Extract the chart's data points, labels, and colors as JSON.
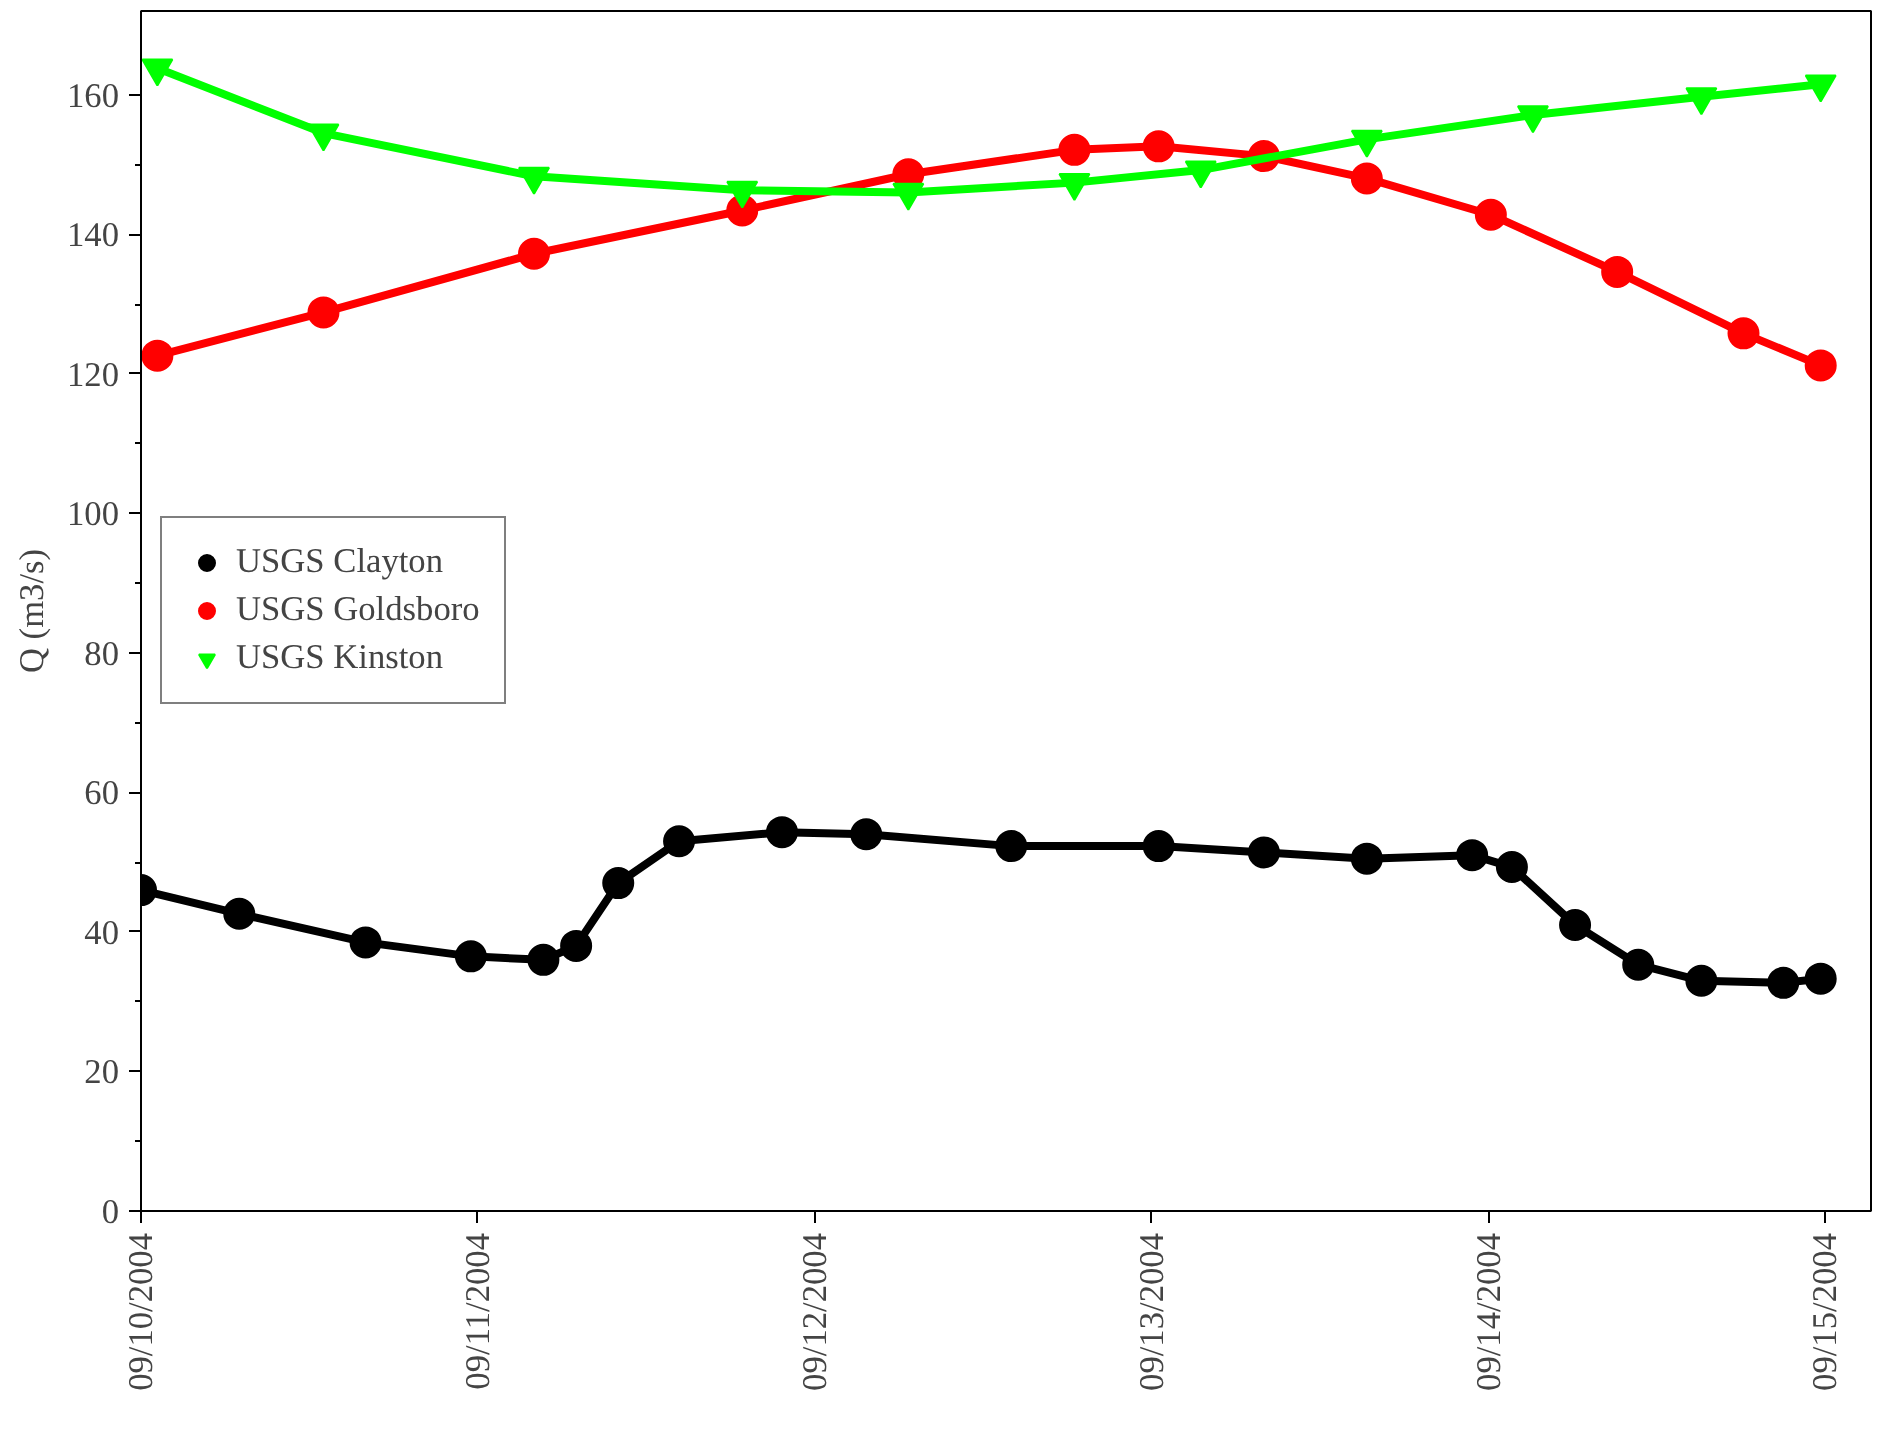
{
  "chart_data": {
    "type": "line",
    "ylabel": "Q (m3/s)",
    "xlim": [
      "2004-09-10T00:00",
      "2004-09-15T03:15"
    ],
    "ylim": [
      0,
      172
    ],
    "xticks": [
      {
        "value": "2004-09-10",
        "label": "09/10/2004"
      },
      {
        "value": "2004-09-11",
        "label": "09/11/2004"
      },
      {
        "value": "2004-09-12",
        "label": "09/12/2004"
      },
      {
        "value": "2004-09-13",
        "label": "09/13/2004"
      },
      {
        "value": "2004-09-14",
        "label": "09/14/2004"
      },
      {
        "value": "2004-09-15",
        "label": "09/15/2004"
      }
    ],
    "yticks": [
      0,
      {
        "value": 10,
        "label": null
      },
      20,
      {
        "value": 30,
        "label": null
      },
      40,
      {
        "value": 50,
        "label": null
      },
      60,
      {
        "value": 70,
        "label": null
      },
      80,
      {
        "value": 90,
        "label": null
      },
      100,
      {
        "value": 110,
        "label": null
      },
      120,
      {
        "value": 130,
        "label": null
      },
      140,
      {
        "value": 150,
        "label": null
      },
      160
    ],
    "grid": false,
    "legend": "left",
    "line_style": "solid",
    "series": [
      {
        "name": "USGS Clayton",
        "color": "#000000",
        "marker": "circle",
        "x": [
          "2004-09-10T00:00",
          "2004-09-10T07:00",
          "2004-09-10T16:00",
          "2004-09-10T23:30",
          "2004-09-11T04:40",
          "2004-09-11T07:00",
          "2004-09-11T10:00",
          "2004-09-11T14:20",
          "2004-09-11T21:40",
          "2004-09-12T03:40",
          "2004-09-12T14:00",
          "2004-09-13T00:30",
          "2004-09-13T08:00",
          "2004-09-13T15:20",
          "2004-09-13T22:50",
          "2004-09-14T01:40",
          "2004-09-14T06:10",
          "2004-09-14T10:40",
          "2004-09-14T15:10",
          "2004-09-14T21:00",
          "2004-09-14T23:40"
        ],
        "values": [
          46,
          42.6,
          38.5,
          36.5,
          36,
          38,
          47,
          53,
          54.3,
          54,
          52.3,
          52.3,
          51.4,
          50.5,
          51,
          49.3,
          41,
          35.3,
          33,
          32.7,
          33.3
        ]
      },
      {
        "name": "USGS Goldsboro",
        "color": "#ff0000",
        "marker": "circle",
        "x": [
          "2004-09-10T01:10",
          "2004-09-10T13:00",
          "2004-09-11T04:00",
          "2004-09-11T18:50",
          "2004-09-12T06:40",
          "2004-09-12T18:30",
          "2004-09-13T00:30",
          "2004-09-13T08:00",
          "2004-09-13T15:20",
          "2004-09-14T00:10",
          "2004-09-14T09:10",
          "2004-09-14T18:10",
          "2004-09-14T23:40"
        ],
        "values": [
          122.6,
          128.8,
          137.2,
          143.4,
          148.6,
          152.1,
          152.6,
          151.2,
          148,
          142.8,
          134.6,
          125.8,
          121.2
        ]
      },
      {
        "name": "USGS Kinston",
        "color": "#00ff00",
        "marker": "triangle",
        "x": [
          "2004-09-10T01:10",
          "2004-09-10T13:00",
          "2004-09-11T04:00",
          "2004-09-11T18:50",
          "2004-09-12T06:40",
          "2004-09-12T18:30",
          "2004-09-13T03:30",
          "2004-09-13T15:20",
          "2004-09-14T03:10",
          "2004-09-14T15:10",
          "2004-09-14T23:40"
        ],
        "values": [
          163.8,
          154.5,
          148.3,
          146.3,
          146,
          147.4,
          149.2,
          153.6,
          157.1,
          159.7,
          161.5
        ]
      }
    ]
  }
}
